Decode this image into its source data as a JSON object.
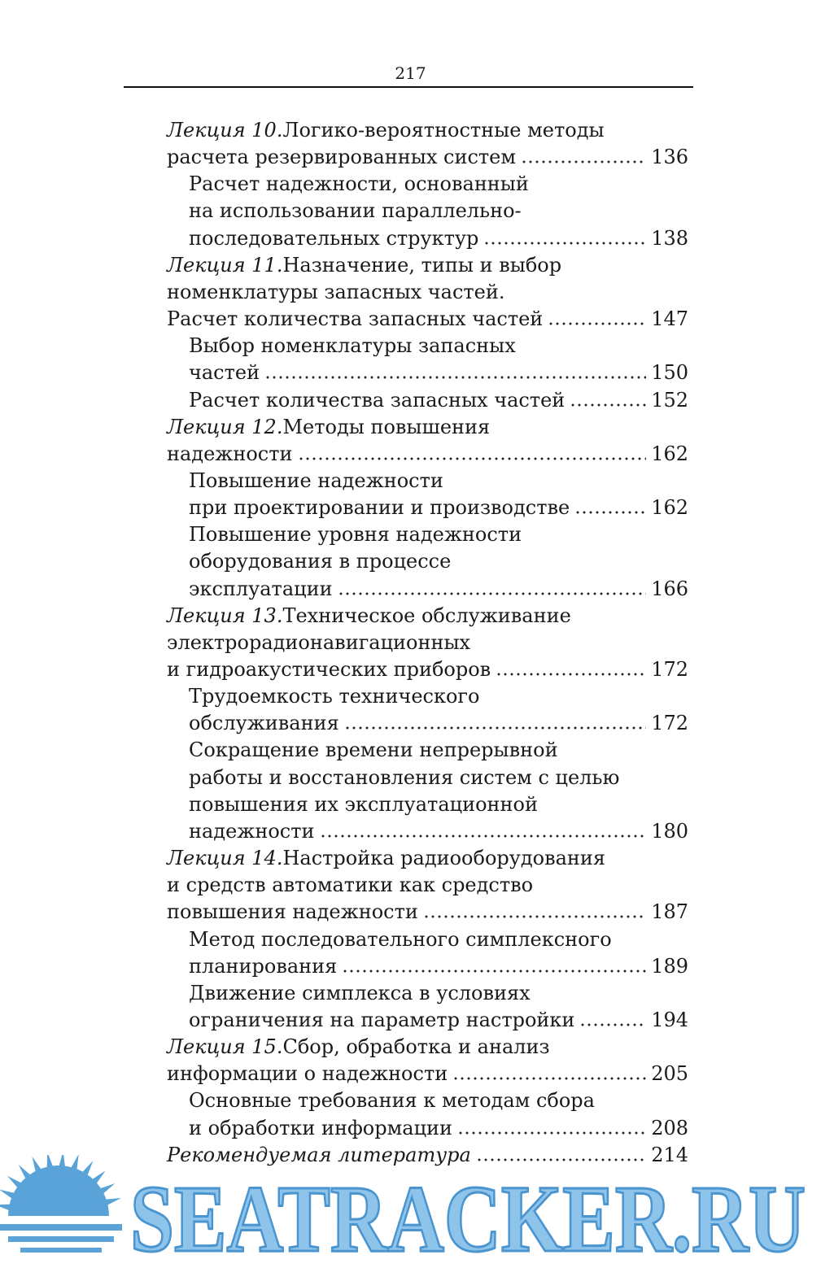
{
  "header": {
    "page_number": "217"
  },
  "toc": [
    {
      "lecture": "Лекция 10.",
      "lines": [
        " Логико-вероятностные методы",
        "расчета резервированных систем"
      ],
      "page": "136",
      "sections": [
        {
          "lines": [
            "Расчет надежности, основанный",
            "на использовании параллельно-",
            "последовательных структур"
          ],
          "page": "138"
        }
      ]
    },
    {
      "lecture": "Лекция 11.",
      "lines": [
        " Назначение, типы и выбор",
        "номенклатуры запасных частей.",
        "Расчет количества запасных частей"
      ],
      "page": "147",
      "sections": [
        {
          "lines": [
            "Выбор номенклатуры запасных",
            "частей"
          ],
          "page": "150"
        },
        {
          "lines": [
            "Расчет количества запасных частей"
          ],
          "page": "152"
        }
      ]
    },
    {
      "lecture": "Лекция 12.",
      "lines": [
        " Методы повышения",
        "надежности"
      ],
      "page": "162",
      "sections": [
        {
          "lines": [
            "Повышение надежности",
            "при проектировании и производстве"
          ],
          "page": "162"
        },
        {
          "lines": [
            "Повышение уровня надежности",
            "оборудования в процессе",
            "эксплуатации"
          ],
          "page": "166"
        }
      ]
    },
    {
      "lecture": "Лекция 13.",
      "lines": [
        " Техническое обслуживание",
        "электрорадионавигационных",
        "и гидроакустических приборов"
      ],
      "page": "172",
      "sections": [
        {
          "lines": [
            "Трудоемкость технического",
            "обслуживания"
          ],
          "page": "172"
        },
        {
          "lines": [
            "Сокращение времени непрерывной",
            "работы и восстановления систем с целью",
            "повышения их эксплуатационной",
            "надежности"
          ],
          "page": "180"
        }
      ]
    },
    {
      "lecture": "Лекция 14.",
      "lines": [
        " Настройка радиооборудования",
        "и средств автоматики как средство",
        "повышения надежности"
      ],
      "page": "187",
      "sections": [
        {
          "lines": [
            "Метод последовательного симплексного",
            "планирования"
          ],
          "page": "189"
        },
        {
          "lines": [
            "Движение симплекса в условиях",
            "ограничения на параметр настройки"
          ],
          "page": "194"
        }
      ]
    },
    {
      "lecture": "Лекция 15.",
      "lines": [
        " Сбор, обработка и анализ",
        "информации о надежности"
      ],
      "page": "205",
      "sections": [
        {
          "lines": [
            "Основные требования к методам сбора",
            "и обработки информации"
          ],
          "page": "208"
        }
      ]
    },
    {
      "lecture": "Рекомендуемая литература",
      "lines": [],
      "page": "214",
      "sections": []
    }
  ],
  "watermark": "SEATRACKER.RU"
}
